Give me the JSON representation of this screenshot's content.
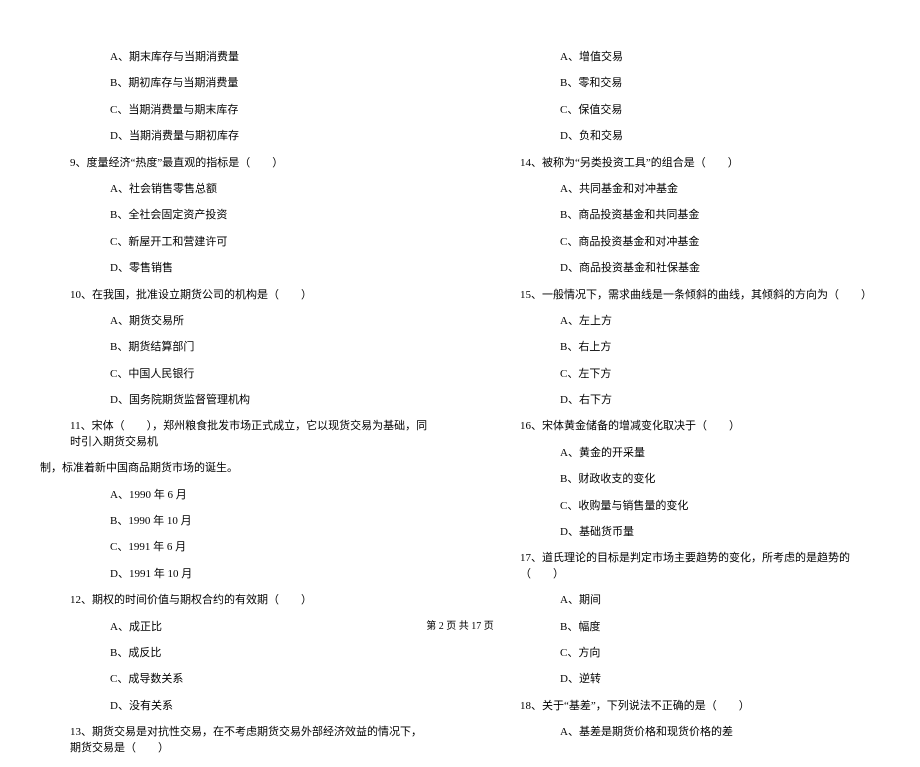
{
  "left": {
    "q8_options": [
      "A、期末库存与当期消费量",
      "B、期初库存与当期消费量",
      "C、当期消费量与期末库存",
      "D、当期消费量与期初库存"
    ],
    "q9": "9、度量经济“热度”最直观的指标是（　　）",
    "q9_options": [
      "A、社会销售零售总额",
      "B、全社会固定资产投资",
      "C、新屋开工和营建许可",
      "D、零售销售"
    ],
    "q10": "10、在我国，批准设立期货公司的机构是（　　）",
    "q10_options": [
      "A、期货交易所",
      "B、期货结算部门",
      "C、中国人民银行",
      "D、国务院期货监督管理机构"
    ],
    "q11_line1": "11、宋体（　　），郑州粮食批发市场正式成立，它以现货交易为基础，同时引入期货交易机",
    "q11_line2": "制，标准着新中国商品期货市场的诞生。",
    "q11_options": [
      "A、1990 年 6 月",
      "B、1990 年 10 月",
      "C、1991 年 6 月",
      "D、1991 年 10 月"
    ],
    "q12": "12、期权的时间价值与期权合约的有效期（　　）",
    "q12_options": [
      "A、成正比",
      "B、成反比",
      "C、成导数关系",
      "D、没有关系"
    ],
    "q13": "13、期货交易是对抗性交易，在不考虑期货交易外部经济效益的情况下，期货交易是（　　）"
  },
  "right": {
    "q13_options": [
      "A、增值交易",
      "B、零和交易",
      "C、保值交易",
      "D、负和交易"
    ],
    "q14": "14、被称为“另类投资工具”的组合是（　　）",
    "q14_options": [
      "A、共同基金和对冲基金",
      "B、商品投资基金和共同基金",
      "C、商品投资基金和对冲基金",
      "D、商品投资基金和社保基金"
    ],
    "q15": "15、一般情况下，需求曲线是一条倾斜的曲线，其倾斜的方向为（　　）",
    "q15_options": [
      "A、左上方",
      "B、右上方",
      "C、左下方",
      "D、右下方"
    ],
    "q16": "16、宋体黄金储备的增减变化取决于（　　）",
    "q16_options": [
      "A、黄金的开采量",
      "B、财政收支的变化",
      "C、收购量与销售量的变化",
      "D、基础货币量"
    ],
    "q17": "17、道氏理论的目标是判定市场主要趋势的变化，所考虑的是趋势的（　　）",
    "q17_options": [
      "A、期间",
      "B、幅度",
      "C、方向",
      "D、逆转"
    ],
    "q18": "18、关于“基差”，下列说法不正确的是（　　）",
    "q18_options": [
      "A、基差是期货价格和现货价格的差"
    ]
  },
  "footer": "第 2 页 共 17 页"
}
